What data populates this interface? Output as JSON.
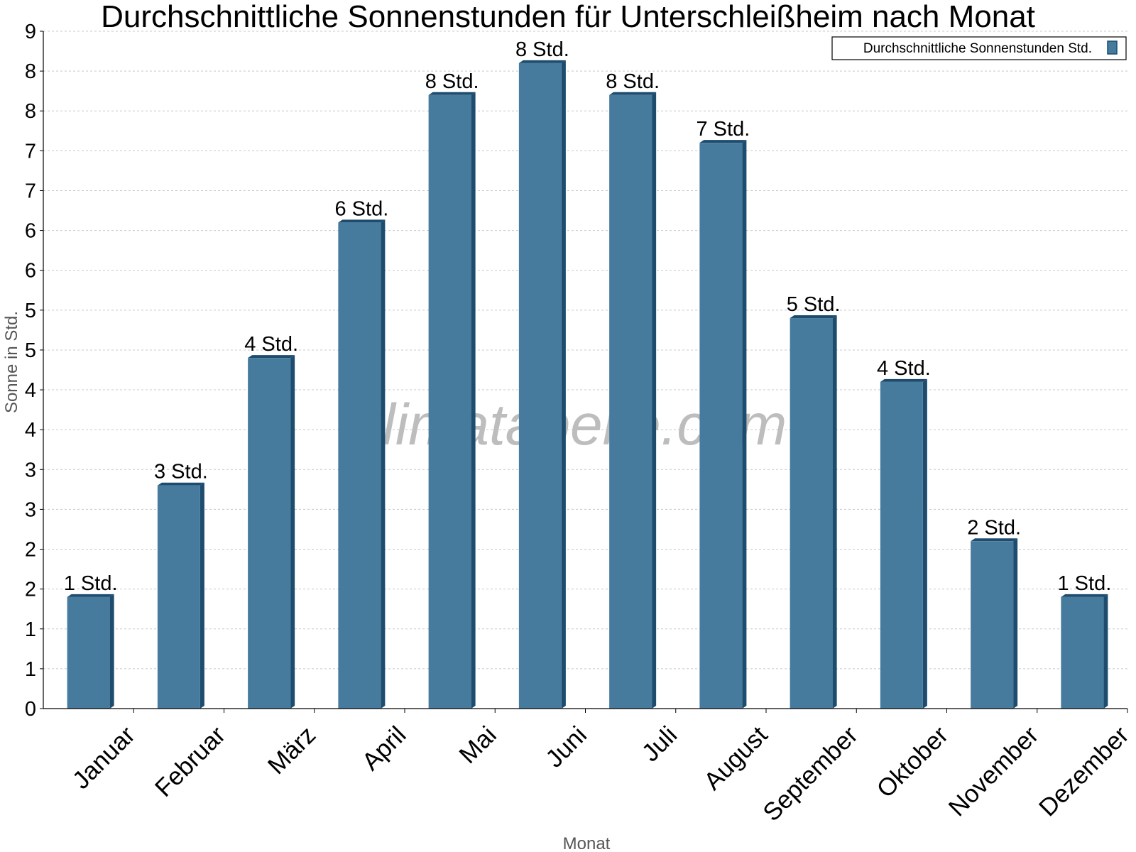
{
  "chart_data": {
    "type": "bar",
    "title": "Durchschnittliche Sonnenstunden für Unterschleißheim nach Monat",
    "xlabel": "Monat",
    "ylabel": "Sonne in Std.",
    "categories": [
      "Januar",
      "Februar",
      "März",
      "April",
      "Mai",
      "Juni",
      "Juli",
      "August",
      "September",
      "Oktober",
      "November",
      "Dezember"
    ],
    "series": [
      {
        "name": "Durchschnittliche Sonnenstunden Std.",
        "values": [
          1.4,
          2.8,
          4.4,
          6.1,
          7.7,
          8.1,
          7.7,
          7.1,
          4.9,
          4.1,
          2.1,
          1.4
        ],
        "labels": [
          "1 Std.",
          "3 Std.",
          "4 Std.",
          "6 Std.",
          "8 Std.",
          "8 Std.",
          "8 Std.",
          "7 Std.",
          "5 Std.",
          "4 Std.",
          "2 Std.",
          "1 Std."
        ],
        "color": "#467b9d",
        "edge_color": "#1d4c6e"
      }
    ],
    "ylim": [
      0,
      8.5
    ],
    "yticks": [
      0,
      0.5,
      1,
      1.5,
      2,
      2.5,
      3,
      3.5,
      4,
      4.5,
      5,
      5.5,
      6,
      6.5,
      7,
      7.5,
      8,
      8.5
    ],
    "ytick_labels": [
      "0",
      "1",
      "1",
      "2",
      "2",
      "3",
      "3",
      "4",
      "4",
      "5",
      "5",
      "6",
      "6",
      "7",
      "7",
      "8",
      "8",
      "9"
    ],
    "grid": true,
    "legend_position": "top-right",
    "watermark": "klimatabelle.com"
  }
}
